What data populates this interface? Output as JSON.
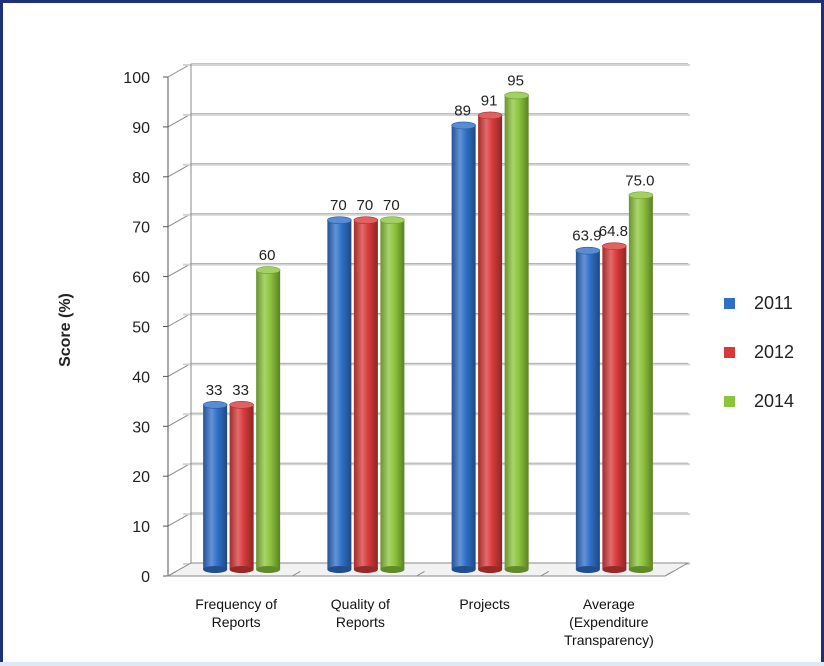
{
  "chart_data": {
    "type": "bar",
    "title": "",
    "xlabel": "",
    "ylabel": "Score (%)",
    "ylim": [
      0,
      100
    ],
    "yticks": [
      "0",
      "10",
      "20",
      "30",
      "40",
      "50",
      "60",
      "70",
      "80",
      "90",
      "100"
    ],
    "grid": true,
    "legend_position": "right",
    "categories": [
      [
        "Frequency of",
        "Reports"
      ],
      [
        "Quality of",
        "Reports"
      ],
      [
        "Projects"
      ],
      [
        "Average",
        "(Expenditure",
        "Transparency)"
      ]
    ],
    "series": [
      {
        "name": "2011",
        "color": "#2f6fc8",
        "values": [
          33,
          70,
          89,
          63.9
        ],
        "labels": [
          "33",
          "70",
          "89",
          "63.9"
        ]
      },
      {
        "name": "2012",
        "color": "#d83a3a",
        "values": [
          33,
          70,
          91,
          64.8
        ],
        "labels": [
          "33",
          "70",
          "91",
          "64.8"
        ]
      },
      {
        "name": "2014",
        "color": "#8cc43c",
        "values": [
          60,
          70,
          95,
          75.0
        ],
        "labels": [
          "60",
          "70",
          "95",
          "75.0"
        ]
      }
    ]
  }
}
